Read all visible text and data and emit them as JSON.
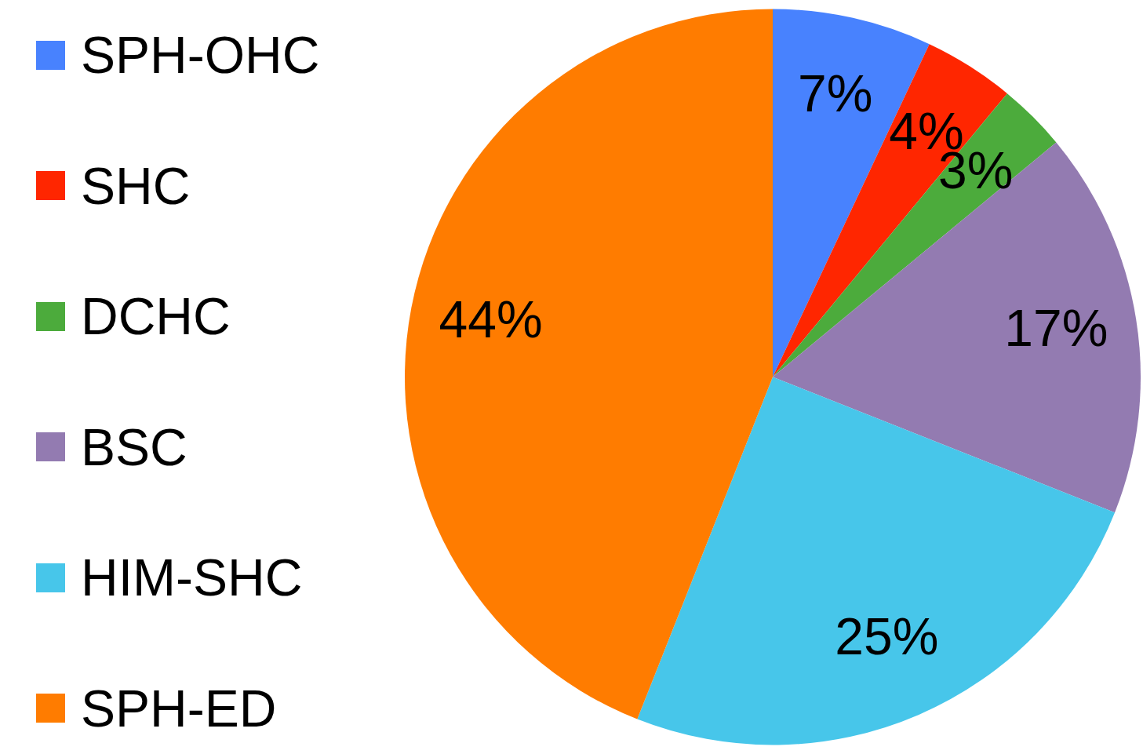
{
  "chart_data": {
    "type": "pie",
    "categories": [
      "SPH-OHC",
      "SHC",
      "DCHC",
      "BSC",
      "HIM-SHC",
      "SPH-ED"
    ],
    "values": [
      7,
      4,
      3,
      17,
      25,
      44
    ],
    "colors": [
      "#4882fe",
      "#ff2600",
      "#4cab3c",
      "#937bb1",
      "#47c6ea",
      "#ff7c00"
    ],
    "value_labels": [
      "7%",
      "4%",
      "3%",
      "17%",
      "25%",
      "44%"
    ],
    "legend": "left"
  }
}
